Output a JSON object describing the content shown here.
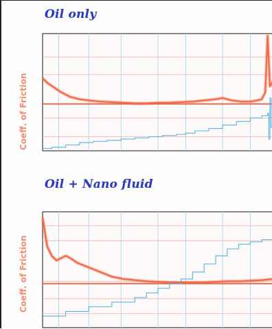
{
  "colors": {
    "title": "#2a3bb8",
    "friction_trace": "#ee6a48",
    "friction_baseline": "#e86a4a",
    "temperature_trace": "#55aee0",
    "grid_vertical": "#a9d6ef",
    "grid_horizontal": "#f3b6b6",
    "axis_label": "#f27a5d"
  },
  "chart_data": [
    {
      "type": "line",
      "title": "Oil only",
      "xlabel": "",
      "ylabel": "Coeff. of Friction",
      "x_tick_labels_visible": false,
      "y_tick_labels_visible": false,
      "grid": true,
      "series": [
        {
          "role": "friction",
          "color": "#ee6a48",
          "x": [
            0,
            0.02,
            0.05,
            0.08,
            0.12,
            0.16,
            0.2,
            0.25,
            0.3,
            0.35,
            0.4,
            0.45,
            0.5,
            0.55,
            0.6,
            0.65,
            0.7,
            0.75,
            0.78,
            0.82,
            0.86,
            0.9,
            0.93,
            0.95,
            0.965,
            0.975,
            0.985,
            1.0
          ],
          "y": [
            0.62,
            0.58,
            0.54,
            0.5,
            0.46,
            0.44,
            0.43,
            0.42,
            0.415,
            0.41,
            0.405,
            0.405,
            0.41,
            0.41,
            0.415,
            0.42,
            0.43,
            0.44,
            0.45,
            0.43,
            0.42,
            0.42,
            0.43,
            0.44,
            0.5,
            0.98,
            0.55,
            0.6
          ]
        },
        {
          "role": "friction-baseline",
          "color": "#e86a4a",
          "x": [
            0,
            1.0
          ],
          "y": [
            0.4,
            0.4
          ]
        },
        {
          "role": "temperature",
          "color": "#55aee0",
          "x": [
            0,
            0.04,
            0.1,
            0.16,
            0.22,
            0.28,
            0.34,
            0.4,
            0.46,
            0.52,
            0.58,
            0.62,
            0.66,
            0.72,
            0.78,
            0.84,
            0.9,
            0.95,
            0.975,
            0.98,
            0.985,
            0.99,
            1.0
          ],
          "y": [
            0.02,
            0.03,
            0.05,
            0.07,
            0.08,
            0.09,
            0.1,
            0.11,
            0.12,
            0.13,
            0.14,
            0.15,
            0.17,
            0.19,
            0.22,
            0.25,
            0.28,
            0.3,
            0.32,
            0.1,
            0.45,
            0.2,
            0.4
          ]
        }
      ]
    },
    {
      "type": "line",
      "title": "Oil + Nano fluid",
      "xlabel": "",
      "ylabel": "Coeff. of Friction",
      "x_tick_labels_visible": false,
      "y_tick_labels_visible": false,
      "grid": true,
      "series": [
        {
          "role": "friction",
          "color": "#ee6a48",
          "x": [
            0,
            0.02,
            0.04,
            0.06,
            0.08,
            0.1,
            0.12,
            0.15,
            0.2,
            0.25,
            0.3,
            0.35,
            0.4,
            0.45,
            0.5,
            0.55,
            0.6,
            0.65,
            0.7,
            0.75,
            0.8,
            0.85,
            0.9,
            0.95,
            1.0
          ],
          "y": [
            0.95,
            0.7,
            0.62,
            0.58,
            0.6,
            0.62,
            0.6,
            0.56,
            0.52,
            0.48,
            0.44,
            0.42,
            0.41,
            0.4,
            0.395,
            0.39,
            0.39,
            0.39,
            0.39,
            0.395,
            0.4,
            0.4,
            0.405,
            0.41,
            0.42
          ]
        },
        {
          "role": "friction-baseline",
          "color": "#e86a4a",
          "x": [
            0,
            1.0
          ],
          "y": [
            0.38,
            0.38
          ]
        },
        {
          "role": "temperature",
          "color": "#55aee0",
          "x": [
            0,
            0.1,
            0.2,
            0.3,
            0.4,
            0.45,
            0.5,
            0.55,
            0.6,
            0.65,
            0.7,
            0.75,
            0.8,
            0.85,
            0.9,
            0.95,
            1.0
          ],
          "y": [
            0.1,
            0.14,
            0.18,
            0.22,
            0.26,
            0.3,
            0.34,
            0.38,
            0.42,
            0.48,
            0.55,
            0.62,
            0.68,
            0.72,
            0.74,
            0.76,
            0.78
          ]
        }
      ]
    }
  ]
}
